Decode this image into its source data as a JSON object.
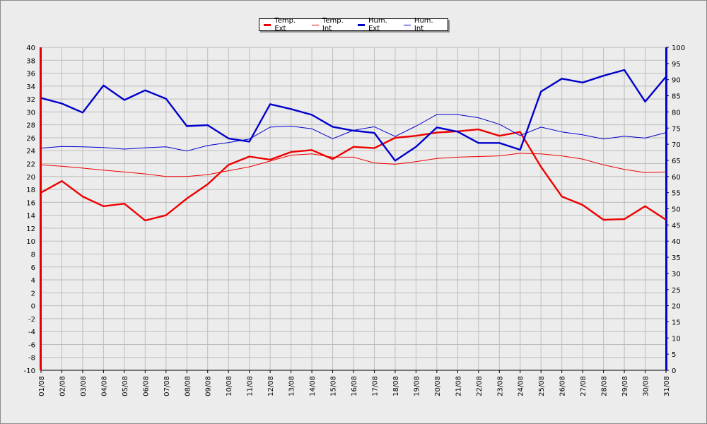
{
  "chart_data": {
    "type": "line",
    "categories": [
      "01/08",
      "02/08",
      "03/08",
      "04/08",
      "05/08",
      "06/08",
      "07/08",
      "08/08",
      "09/08",
      "10/08",
      "11/08",
      "12/08",
      "13/08",
      "14/08",
      "15/08",
      "16/08",
      "17/08",
      "18/08",
      "19/08",
      "20/08",
      "21/08",
      "22/08",
      "23/08",
      "24/08",
      "25/08",
      "26/08",
      "27/08",
      "28/08",
      "29/08",
      "30/08",
      "31/08"
    ],
    "y_left": {
      "min": -10,
      "max": 40,
      "step": 2,
      "color": "#e00000"
    },
    "y_right": {
      "min": 0,
      "max": 100,
      "step": 5,
      "color": "#0000cc"
    },
    "grid": true,
    "legend_position": "top-center",
    "series": [
      {
        "name": "Temp. Ext",
        "axis": "left",
        "color": "#ee0000",
        "weight": "bold",
        "values": [
          17.5,
          19.3,
          16.9,
          15.4,
          15.8,
          13.2,
          14.0,
          16.6,
          18.8,
          21.8,
          23.1,
          22.6,
          23.8,
          24.1,
          22.7,
          24.6,
          24.4,
          26.0,
          26.3,
          26.8,
          27.0,
          27.3,
          26.3,
          26.9,
          21.5,
          16.9,
          15.6,
          13.3,
          13.4,
          15.4,
          13.3
        ]
      },
      {
        "name": "Temp. Int",
        "axis": "left",
        "color": "#ee0000",
        "weight": "thin",
        "values": [
          21.8,
          21.6,
          21.3,
          21.0,
          20.7,
          20.4,
          20.0,
          20.0,
          20.3,
          20.9,
          21.5,
          22.4,
          23.3,
          23.5,
          23.0,
          23.0,
          22.1,
          21.9,
          22.3,
          22.8,
          23.0,
          23.1,
          23.2,
          23.6,
          23.5,
          23.2,
          22.7,
          21.8,
          21.1,
          20.6,
          20.7
        ]
      },
      {
        "name": "Hum. Ext",
        "axis": "right",
        "color": "#0000cc",
        "weight": "bold",
        "values": [
          84.3,
          82.6,
          79.8,
          88.2,
          83.7,
          86.7,
          84.1,
          75.6,
          75.9,
          71.8,
          70.8,
          82.4,
          80.9,
          79.1,
          75.4,
          74.2,
          73.5,
          64.9,
          69.2,
          75.2,
          73.9,
          70.4,
          70.4,
          68.3,
          86.3,
          90.3,
          89.1,
          91.2,
          93.0,
          83.2,
          90.9
        ]
      },
      {
        "name": "Hum. Int",
        "axis": "right",
        "color": "#0000cc",
        "weight": "thin",
        "values": [
          68.8,
          69.3,
          69.2,
          69.0,
          68.5,
          68.9,
          69.2,
          67.9,
          69.6,
          70.5,
          71.6,
          75.3,
          75.6,
          74.8,
          71.7,
          74.3,
          75.4,
          72.4,
          75.6,
          79.2,
          79.2,
          78.2,
          76.2,
          72.7,
          75.3,
          73.8,
          72.9,
          71.6,
          72.5,
          71.9,
          73.6
        ]
      }
    ]
  }
}
